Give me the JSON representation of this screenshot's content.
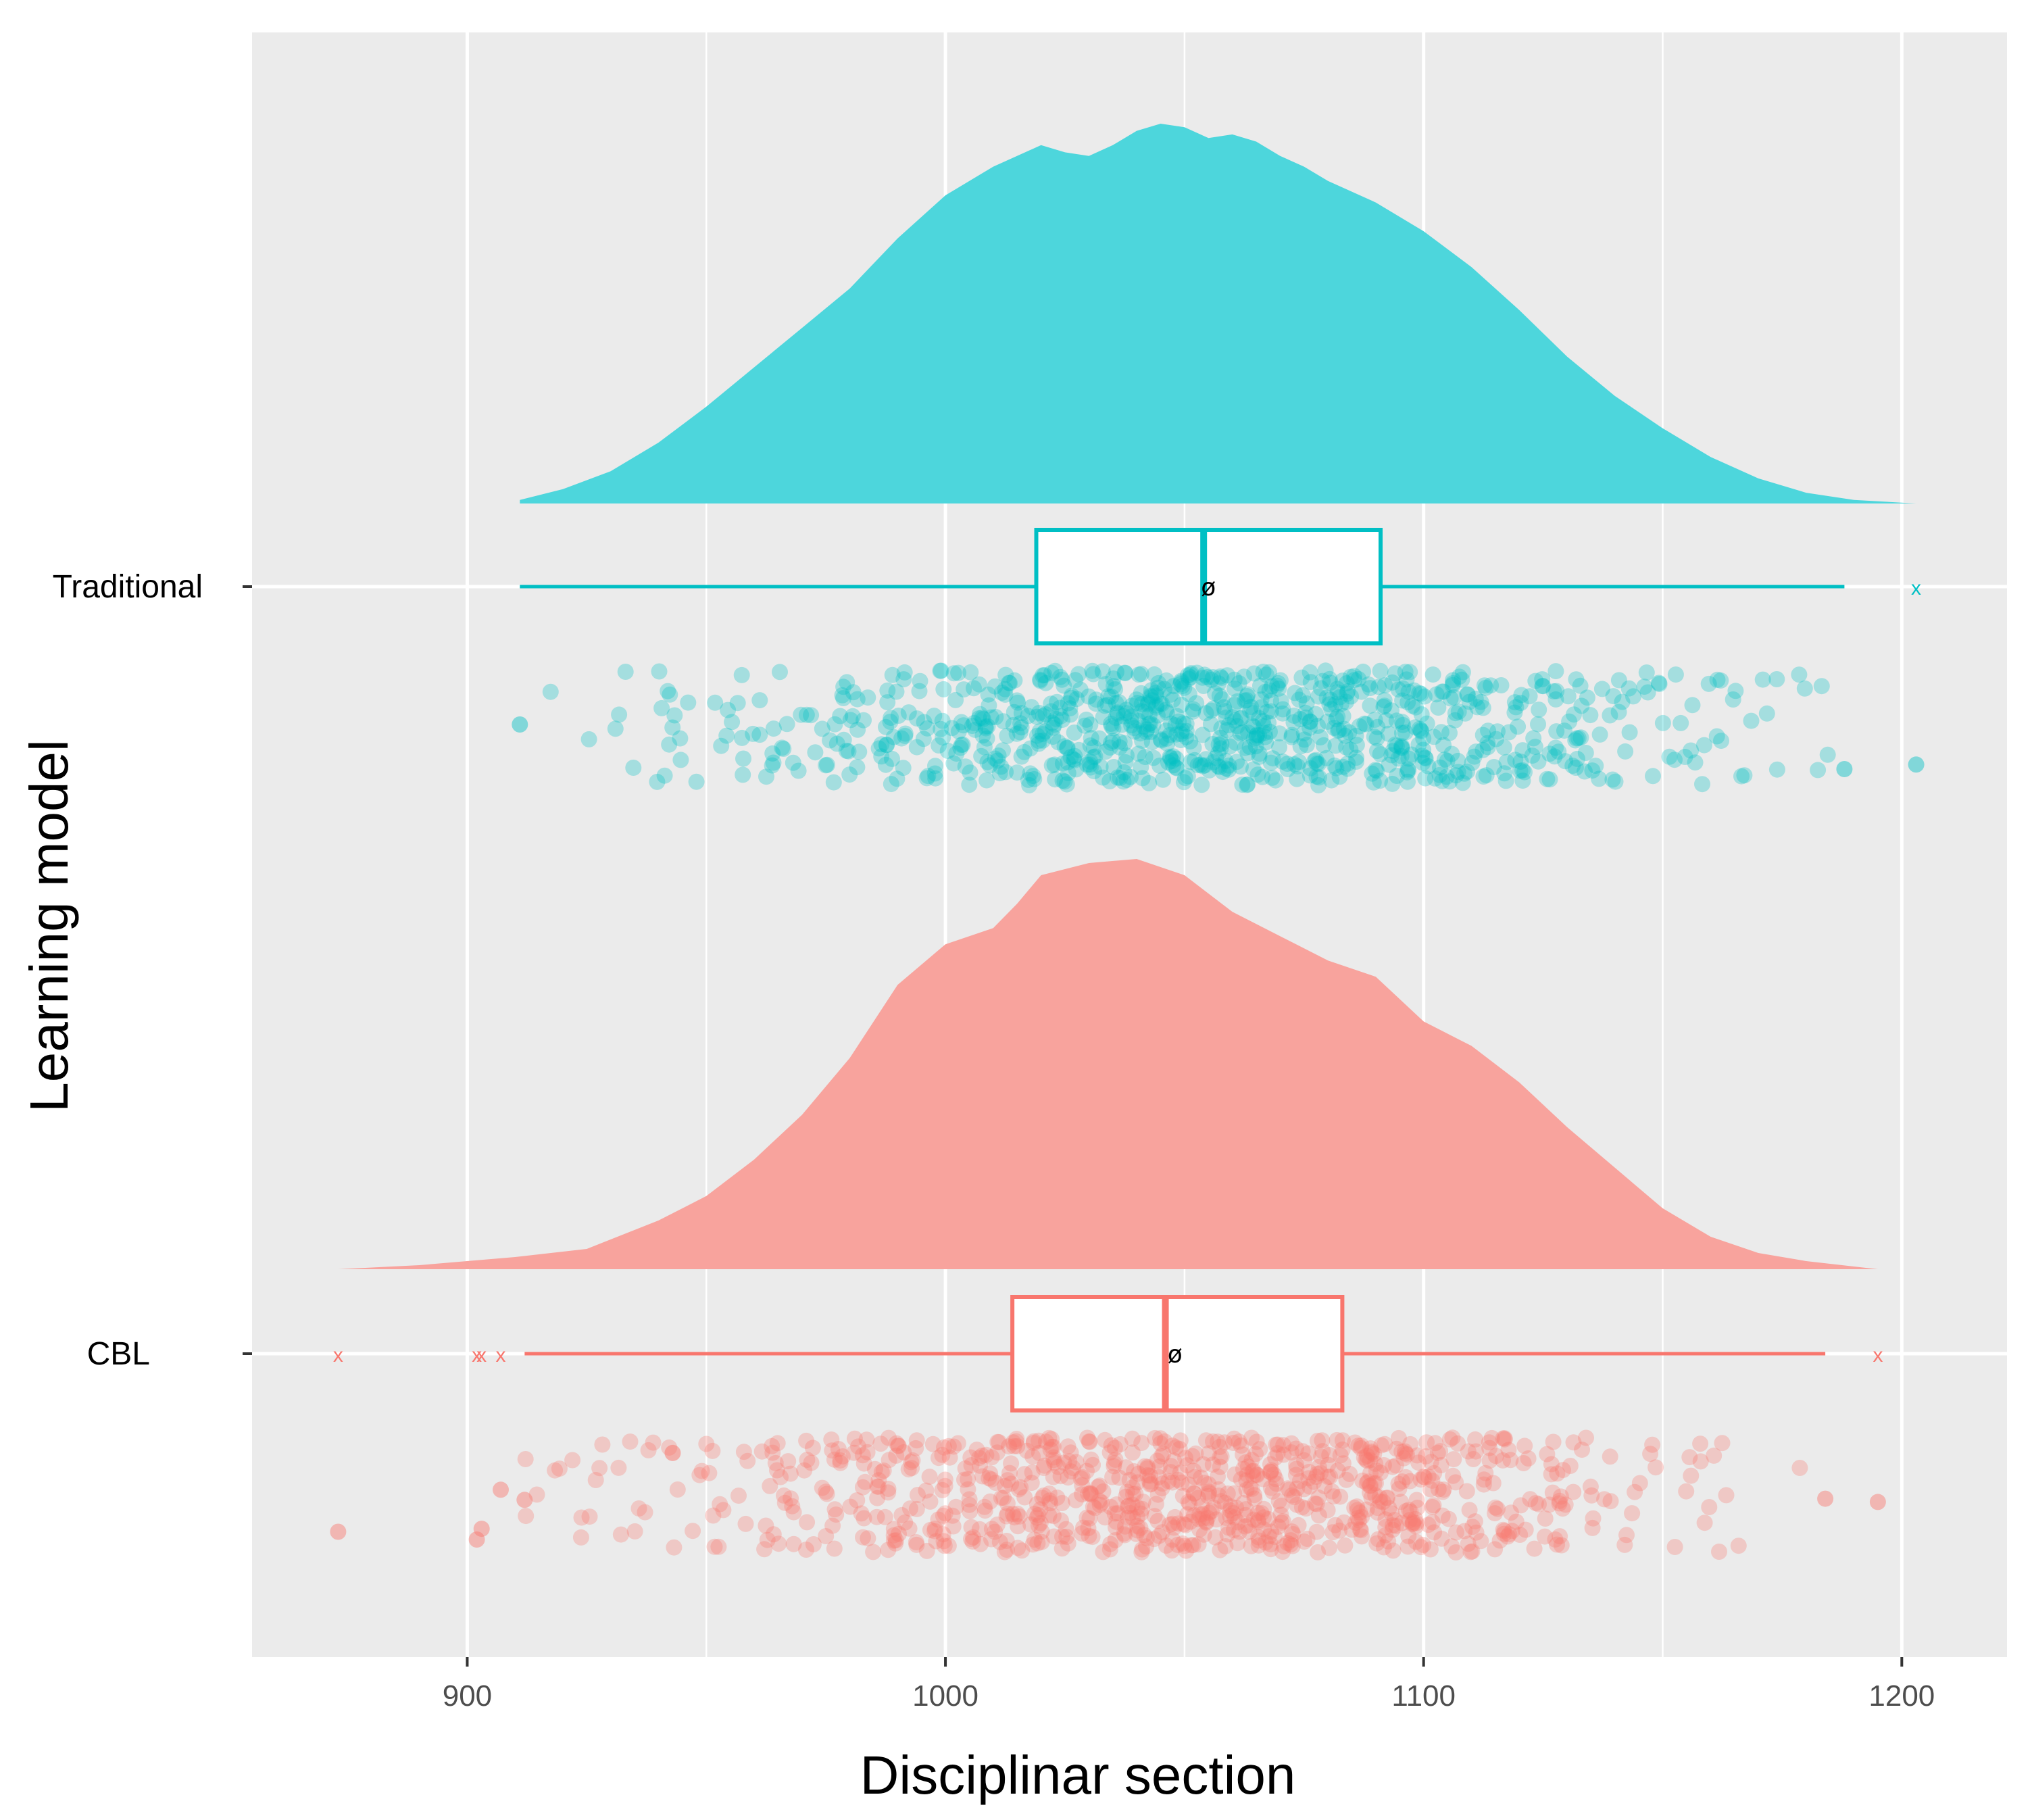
{
  "chart_data": {
    "type": "raincloud",
    "title": "",
    "xlabel": "Disciplinar section",
    "ylabel": "Learning model",
    "xlim": [
      855,
      1222
    ],
    "x_ticks": [
      "900",
      "1000",
      "1100",
      "1200"
    ],
    "grid": true,
    "mean_marker": "ø",
    "outlier_marker": "x",
    "groups": [
      {
        "name": "Traditional",
        "color": "#4dd6dc",
        "point_color": "#00bfc4",
        "box": {
          "min": 911,
          "q1": 1019,
          "median": 1054,
          "q3": 1091,
          "max": 1188,
          "mean": 1055
        },
        "outliers": [
          1203
        ],
        "density": {
          "x": [
            911,
            920,
            930,
            940,
            950,
            960,
            970,
            980,
            990,
            1000,
            1010,
            1020,
            1025,
            1030,
            1035,
            1040,
            1045,
            1050,
            1055,
            1060,
            1065,
            1070,
            1075,
            1080,
            1090,
            1100,
            1110,
            1120,
            1130,
            1140,
            1150,
            1160,
            1170,
            1180,
            1190,
            1203
          ],
          "y": [
            0.01,
            0.04,
            0.09,
            0.17,
            0.27,
            0.38,
            0.49,
            0.6,
            0.74,
            0.86,
            0.94,
            1.0,
            0.98,
            0.97,
            1.0,
            1.04,
            1.06,
            1.05,
            1.02,
            1.03,
            1.01,
            0.97,
            0.94,
            0.9,
            0.84,
            0.76,
            0.66,
            0.54,
            0.41,
            0.3,
            0.21,
            0.13,
            0.07,
            0.03,
            0.01,
            0.0
          ]
        }
      },
      {
        "name": "CBL",
        "color": "#f8a39d",
        "point_color": "#f8766d",
        "box": {
          "min": 912,
          "q1": 1014,
          "median": 1046,
          "q3": 1083,
          "max": 1184,
          "mean": 1048
        },
        "outliers": [
          873,
          902,
          903,
          907,
          1195
        ],
        "density": {
          "x": [
            873,
            890,
            910,
            925,
            940,
            950,
            960,
            970,
            980,
            990,
            1000,
            1005,
            1010,
            1015,
            1020,
            1030,
            1040,
            1050,
            1060,
            1070,
            1080,
            1090,
            1100,
            1110,
            1120,
            1130,
            1140,
            1150,
            1160,
            1170,
            1180,
            1195
          ],
          "y": [
            0.0,
            0.01,
            0.03,
            0.05,
            0.12,
            0.18,
            0.27,
            0.38,
            0.52,
            0.7,
            0.8,
            0.82,
            0.84,
            0.9,
            0.97,
            1.0,
            1.01,
            0.97,
            0.88,
            0.82,
            0.76,
            0.72,
            0.61,
            0.55,
            0.46,
            0.35,
            0.25,
            0.15,
            0.08,
            0.04,
            0.02,
            0.0
          ]
        }
      }
    ]
  }
}
